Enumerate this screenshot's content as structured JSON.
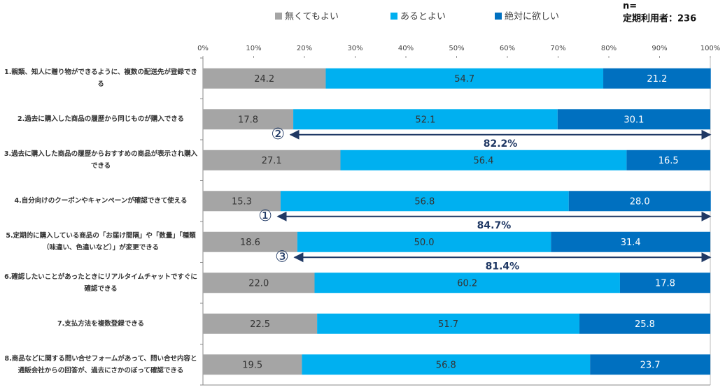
{
  "chart_data": {
    "type": "stacked-bar-horizontal",
    "sample_label": "n=",
    "sample_text": "定期利用者：236",
    "categories": [
      "1.親類、知人に贈り物ができるように、複数の配送先が登録できる",
      "2.過去に購入した商品の履歴から同じものが購入できる",
      "3.過去に購入した商品の履歴からおすすめの商品が表示され購入できる",
      "4.自分向けのクーポンやキャンペーンが確認できて使える",
      "5.定期的に購入している商品の「お届け間隔」や「数量」「種類（味違い、色違いなど）」が変更できる",
      "6.確認したいことがあったときにリアルタイムチャットですぐに確認できる",
      "7.支払方法を複数登録できる",
      "8.商品などに関する問い合せフォームがあって、問い合せ内容と通販会社からの回答が、過去にさかのぼって確認できる"
    ],
    "series": [
      {
        "name": "無くてもよい",
        "color": "#a5a5a5",
        "values": [
          24.2,
          17.8,
          27.1,
          15.3,
          18.6,
          22.0,
          22.5,
          19.5
        ],
        "value_labels": [
          "24.2",
          "17.8",
          "27.1",
          "15.3",
          "18.6",
          "22.0",
          "22.5",
          "19.5"
        ]
      },
      {
        "name": "あるとよい",
        "color": "#00b0f0",
        "values": [
          54.7,
          52.1,
          56.4,
          56.8,
          50.0,
          60.2,
          51.7,
          56.8
        ],
        "value_labels": [
          "54.7",
          "52.1",
          "56.4",
          "56.8",
          "50.0",
          "60.2",
          "51.7",
          "56.8"
        ]
      },
      {
        "name": "絶対に欲しい",
        "color": "#0070c0",
        "values": [
          21.2,
          30.1,
          16.5,
          28.0,
          31.4,
          17.8,
          25.8,
          23.7
        ],
        "value_labels": [
          "21.2",
          "30.1",
          "16.5",
          "28.0",
          "31.4",
          "17.8",
          "25.8",
          "23.7"
        ]
      }
    ],
    "xlim": [
      0,
      100
    ],
    "xticks": [
      {
        "value": 0,
        "label": "0%"
      },
      {
        "value": 10,
        "label": "10%"
      },
      {
        "value": 20,
        "label": "20%"
      },
      {
        "value": 30,
        "label": "30%"
      },
      {
        "value": 40,
        "label": "40%"
      },
      {
        "value": 50,
        "label": "50%"
      },
      {
        "value": 60,
        "label": "60%"
      },
      {
        "value": 70,
        "label": "70%"
      },
      {
        "value": 80,
        "label": "80%"
      },
      {
        "value": 90,
        "label": "90%"
      },
      {
        "value": 100,
        "label": "100%"
      }
    ],
    "grid": false,
    "annotations": [
      {
        "marker": "②",
        "label": "82.2%"
      },
      {
        "marker": "①",
        "label": "84.7%"
      },
      {
        "marker": "③",
        "label": "81.4%"
      }
    ]
  }
}
